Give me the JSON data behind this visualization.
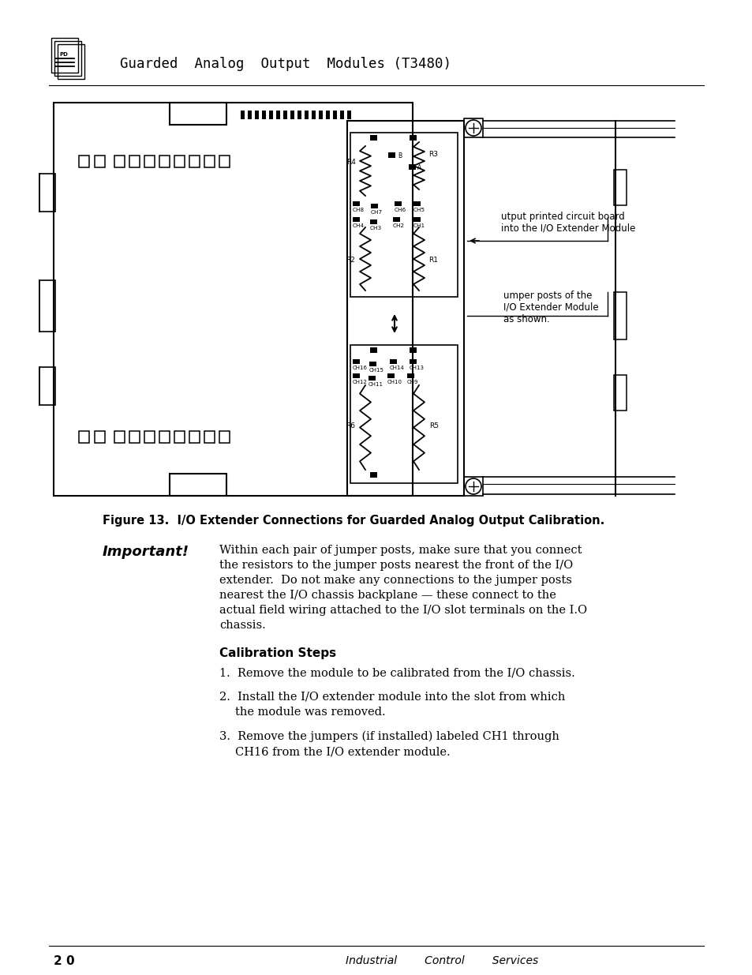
{
  "page_bg": "#ffffff",
  "header_title": "Guarded  Analog  Output  Modules (T3480)",
  "figure_caption": "Figure 13.  I/O Extender Connections for Guarded Analog Output Calibration.",
  "important_label": "Important!",
  "important_text_lines": [
    "Within each pair of jumper posts, make sure that you connect",
    "the resistors to the jumper posts nearest the front of the I/O",
    "extender.  Do not make any connections to the jumper posts",
    "nearest the I/O chassis backplane — these connect to the",
    "actual field wiring attached to the I/O slot terminals on the I.O",
    "chassis."
  ],
  "calibration_title": "Calibration Steps",
  "step1": "Remove the module to be calibrated from the I/O chassis.",
  "step2a": "Install the I/O extender module into the slot from which",
  "step2b": "the module was removed.",
  "step3a": "Remove the jumpers (if installed) labeled CH1 through",
  "step3b": "CH16 from the I/O extender module.",
  "footer_left": "2 0",
  "footer_center": "Industrial        Control        Services",
  "ann1a": "utput printed circuit board",
  "ann1b": "into the I/O Extender Module",
  "ann2a": "umper posts of the",
  "ann2b": "I/O Extender Module",
  "ann2c": "as shown."
}
